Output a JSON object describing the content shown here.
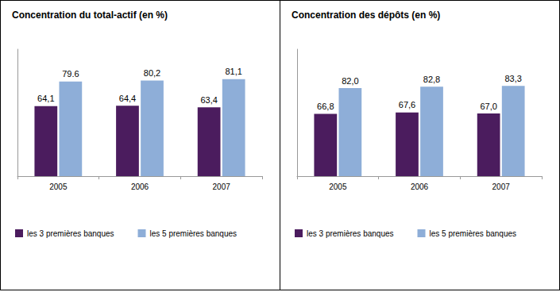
{
  "chart_data": [
    {
      "type": "bar",
      "title": "Concentration du total-actif (en %)",
      "categories": [
        "2005",
        "2006",
        "2007"
      ],
      "series": [
        {
          "name": "les 3 premières banques",
          "color": "#4b1c5e",
          "values": [
            64.1,
            64.4,
            63.4
          ],
          "value_labels": [
            "64,1",
            "64,4",
            "63,4"
          ]
        },
        {
          "name": "les 5 premières banques",
          "color": "#8eaed8",
          "values": [
            79.6,
            80.2,
            81.1
          ],
          "value_labels": [
            "79.6",
            "80,2",
            "81,1"
          ]
        }
      ],
      "ylim": [
        20,
        100
      ],
      "data_labels": true,
      "tick_labels": "x",
      "legend": "bottom",
      "grid": false
    },
    {
      "type": "bar",
      "title": "Concentration des dépôts (en %)",
      "categories": [
        "2005",
        "2006",
        "2007"
      ],
      "series": [
        {
          "name": "les 3 premières banques",
          "color": "#4b1c5e",
          "values": [
            66.8,
            67.6,
            67.0
          ],
          "value_labels": [
            "66,8",
            "67,6",
            "67,0"
          ]
        },
        {
          "name": "les 5 premières banques",
          "color": "#8eaed8",
          "values": [
            82.0,
            82.8,
            83.3
          ],
          "value_labels": [
            "82,0",
            "82,8",
            "83,3"
          ]
        }
      ],
      "ylim": [
        30,
        105
      ],
      "data_labels": true,
      "tick_labels": "x",
      "legend": "bottom",
      "grid": false
    }
  ]
}
